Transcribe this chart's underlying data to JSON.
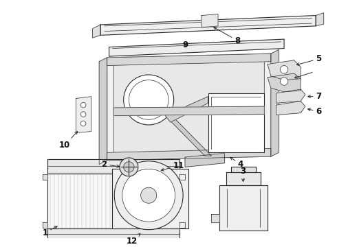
{
  "background": "#ffffff",
  "line_color": "#2a2a2a",
  "label_color": "#111111",
  "fig_width": 4.9,
  "fig_height": 3.6,
  "dpi": 100,
  "label_fontsize": 8.5
}
